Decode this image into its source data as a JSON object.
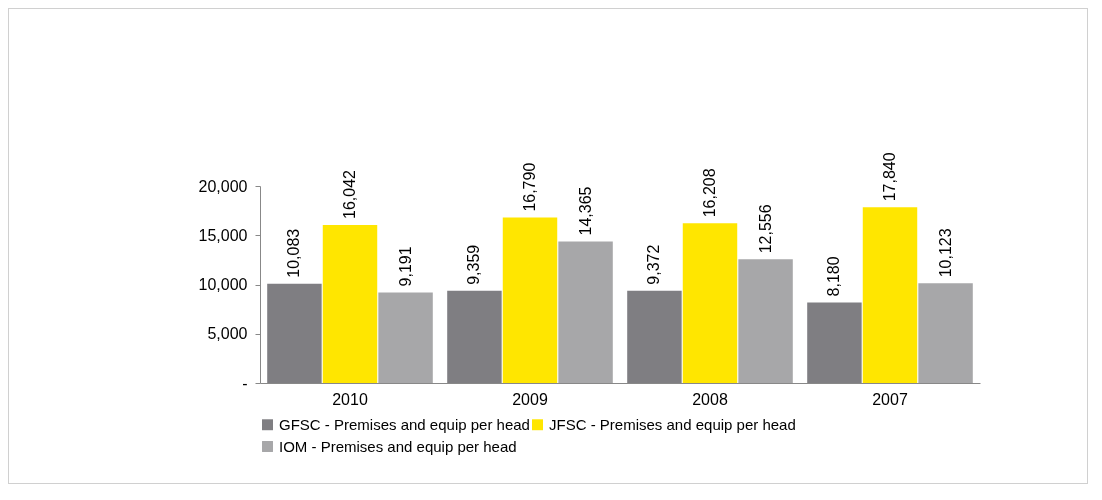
{
  "chart_data": {
    "type": "bar",
    "categories": [
      "2010",
      "2009",
      "2008",
      "2007"
    ],
    "series": [
      {
        "name": "GFSC - Premises and equip per head",
        "color": "#7f7e82",
        "values": [
          10083,
          9359,
          9372,
          8180
        ],
        "value_labels": [
          "10,083",
          "9,359",
          "9,372",
          "8,180"
        ]
      },
      {
        "name": "JFSC -  Premises and equip per head",
        "color": "#ffe600",
        "values": [
          16042,
          16790,
          16208,
          17840
        ],
        "value_labels": [
          "16,042",
          "16,790",
          "16,208",
          "17,840"
        ]
      },
      {
        "name": "IOM -  Premises and equip per head",
        "color": "#a7a7a9",
        "values": [
          9191,
          14365,
          12556,
          10123
        ],
        "value_labels": [
          "9,191",
          "14,365",
          "12,556",
          "10,123"
        ]
      }
    ],
    "ylim": [
      0,
      20000
    ],
    "yticks": [
      {
        "value": 0,
        "label": "-"
      },
      {
        "value": 5000,
        "label": "5,000"
      },
      {
        "value": 10000,
        "label": "10,000"
      },
      {
        "value": 15000,
        "label": "15,000"
      },
      {
        "value": 20000,
        "label": "20,000"
      }
    ],
    "grid": false,
    "legend": "bottom"
  }
}
